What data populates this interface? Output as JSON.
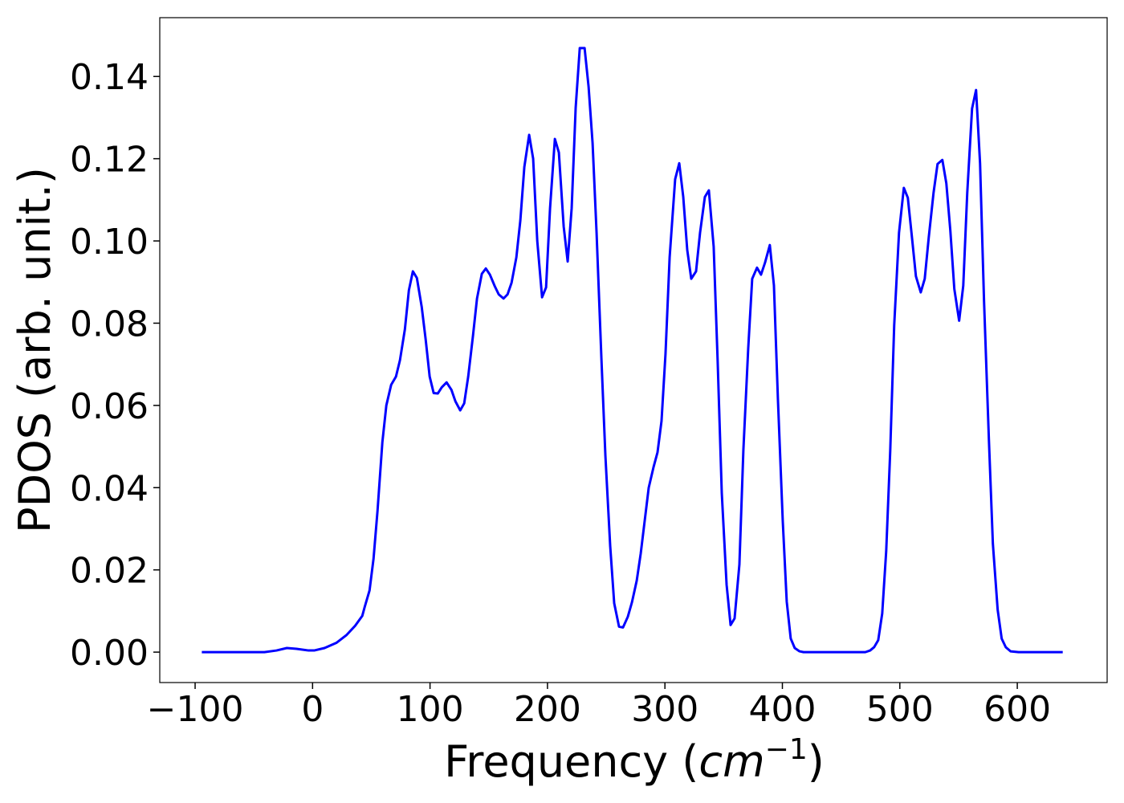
{
  "chart_data": {
    "type": "line",
    "xlabel": {
      "text": "Frequency (",
      "math": "cm",
      "sup": "−1",
      "close": ")"
    },
    "ylabel": "PDOS (arb. unit.)",
    "xlim": [
      -130.1,
      676.5
    ],
    "ylim": [
      -0.0074,
      0.1543
    ],
    "xticks": [
      {
        "value": -100,
        "label": "−100"
      },
      0,
      100,
      200,
      300,
      400,
      500,
      600
    ],
    "yticks": [
      {
        "value": 0,
        "label": "0.00"
      },
      {
        "value": 0.02,
        "label": "0.02"
      },
      {
        "value": 0.04,
        "label": "0.04"
      },
      {
        "value": 0.06,
        "label": "0.06"
      },
      {
        "value": 0.08,
        "label": "0.08"
      },
      {
        "value": 0.1,
        "label": "0.10"
      },
      {
        "value": 0.12,
        "label": "0.12"
      },
      {
        "value": 0.14,
        "label": "0.14"
      }
    ],
    "x": [
      -94.3,
      -41.0,
      -30.7,
      -21.9,
      -13.7,
      -3.4,
      1.4,
      10.2,
      20.5,
      28.7,
      36.2,
      42.3,
      44.4,
      48.5,
      51.9,
      55.3,
      59.4,
      62.8,
      66.9,
      71.0,
      74.4,
      78.6,
      82.0,
      85.4,
      88.8,
      92.9,
      96.3,
      99.7,
      103.1,
      106.6,
      110.0,
      114.1,
      118.2,
      121.6,
      125.7,
      129.1,
      132.5,
      136.6,
      140.0,
      144.1,
      147.5,
      151.0,
      155.1,
      158.5,
      162.6,
      166.0,
      169.4,
      173.5,
      176.9,
      180.3,
      184.4,
      187.8,
      191.3,
      195.4,
      198.8,
      202.2,
      206.3,
      209.7,
      213.8,
      217.2,
      220.6,
      224.0,
      227.5,
      231.6,
      235.0,
      238.4,
      241.8,
      245.9,
      249.3,
      253.4,
      256.8,
      260.9,
      264.3,
      268.4,
      271.9,
      276.0,
      279.4,
      282.8,
      286.2,
      290.3,
      293.7,
      297.1,
      300.5,
      304.0,
      308.7,
      312.2,
      315.6,
      319.0,
      322.4,
      326.5,
      329.9,
      334.0,
      337.4,
      341.5,
      344.9,
      348.4,
      352.5,
      355.9,
      359.3,
      363.4,
      366.8,
      370.9,
      374.3,
      378.4,
      381.8,
      385.2,
      389.3,
      392.8,
      396.2,
      400.3,
      403.7,
      407.1,
      410.5,
      414.6,
      418.0,
      470.6,
      474.7,
      478.1,
      481.6,
      485.0,
      488.4,
      491.8,
      495.2,
      499.3,
      503.4,
      506.8,
      510.2,
      513.7,
      517.8,
      521.2,
      524.6,
      528.7,
      532.1,
      536.2,
      539.6,
      543.0,
      546.4,
      550.5,
      554.0,
      557.4,
      561.5,
      564.9,
      568.3,
      571.7,
      575.8,
      579.2,
      583.3,
      586.7,
      590.2,
      594.3,
      601.1,
      638.7
    ],
    "series": [
      {
        "name": "PDOS",
        "color": "#0000ff",
        "values": [
          0,
          0,
          0.0004,
          0.001,
          0.0008,
          0.0004,
          0.0004,
          0.001,
          0.0023,
          0.0041,
          0.0064,
          0.0088,
          0.011,
          0.015,
          0.0227,
          0.0344,
          0.051,
          0.06,
          0.065,
          0.067,
          0.071,
          0.0785,
          0.088,
          0.0926,
          0.091,
          0.084,
          0.076,
          0.067,
          0.063,
          0.0629,
          0.0644,
          0.0656,
          0.0638,
          0.061,
          0.0588,
          0.0605,
          0.067,
          0.077,
          0.086,
          0.092,
          0.0933,
          0.0918,
          0.089,
          0.087,
          0.086,
          0.087,
          0.0898,
          0.096,
          0.105,
          0.118,
          0.1258,
          0.12,
          0.1,
          0.0863,
          0.0887,
          0.108,
          0.1248,
          0.1215,
          0.1035,
          0.095,
          0.108,
          0.1324,
          0.1469,
          0.1469,
          0.1375,
          0.1238,
          0.102,
          0.0715,
          0.0478,
          0.0258,
          0.0119,
          0.0062,
          0.006,
          0.0086,
          0.0121,
          0.0174,
          0.024,
          0.032,
          0.04,
          0.045,
          0.0486,
          0.0562,
          0.0726,
          0.096,
          0.115,
          0.1189,
          0.1107,
          0.0978,
          0.0908,
          0.0926,
          0.102,
          0.1107,
          0.1123,
          0.0986,
          0.0707,
          0.0387,
          0.0164,
          0.0066,
          0.0082,
          0.0213,
          0.0492,
          0.0738,
          0.0908,
          0.0935,
          0.0918,
          0.0947,
          0.099,
          0.0892,
          0.0615,
          0.032,
          0.0123,
          0.0033,
          0.001,
          0.0002,
          0,
          0,
          0.0004,
          0.0012,
          0.0029,
          0.0094,
          0.0246,
          0.0488,
          0.0795,
          0.102,
          0.1129,
          0.1105,
          0.1012,
          0.0914,
          0.0875,
          0.0908,
          0.1008,
          0.1117,
          0.1187,
          0.1197,
          0.114,
          0.1025,
          0.0883,
          0.0806,
          0.0891,
          0.1117,
          0.1322,
          0.1367,
          0.1189,
          0.0853,
          0.0519,
          0.0264,
          0.0103,
          0.0033,
          0.0012,
          0.0002,
          0,
          0
        ]
      }
    ]
  }
}
